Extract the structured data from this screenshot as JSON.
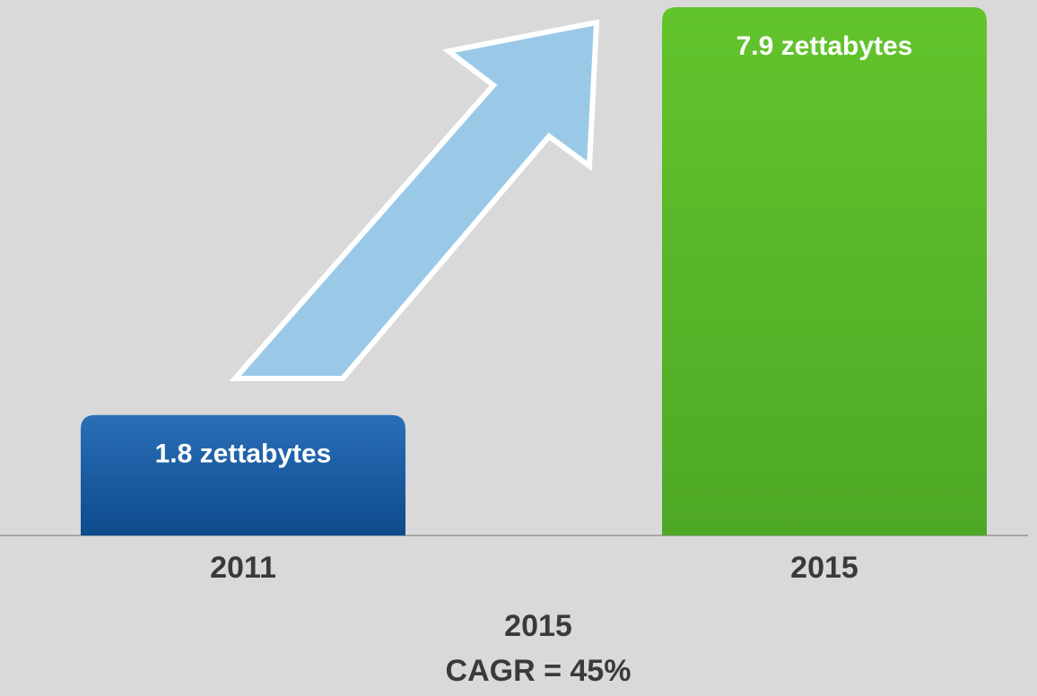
{
  "chart_data": {
    "type": "bar",
    "categories": [
      "2011",
      "2015"
    ],
    "values": [
      1.8,
      7.9
    ],
    "value_labels": [
      "1.8 zettabytes",
      "7.9 zettabytes"
    ],
    "colors": [
      "#1a5ea6",
      "#5cbf2a"
    ],
    "annotation": [
      "2015",
      "CAGR = 45%"
    ]
  }
}
